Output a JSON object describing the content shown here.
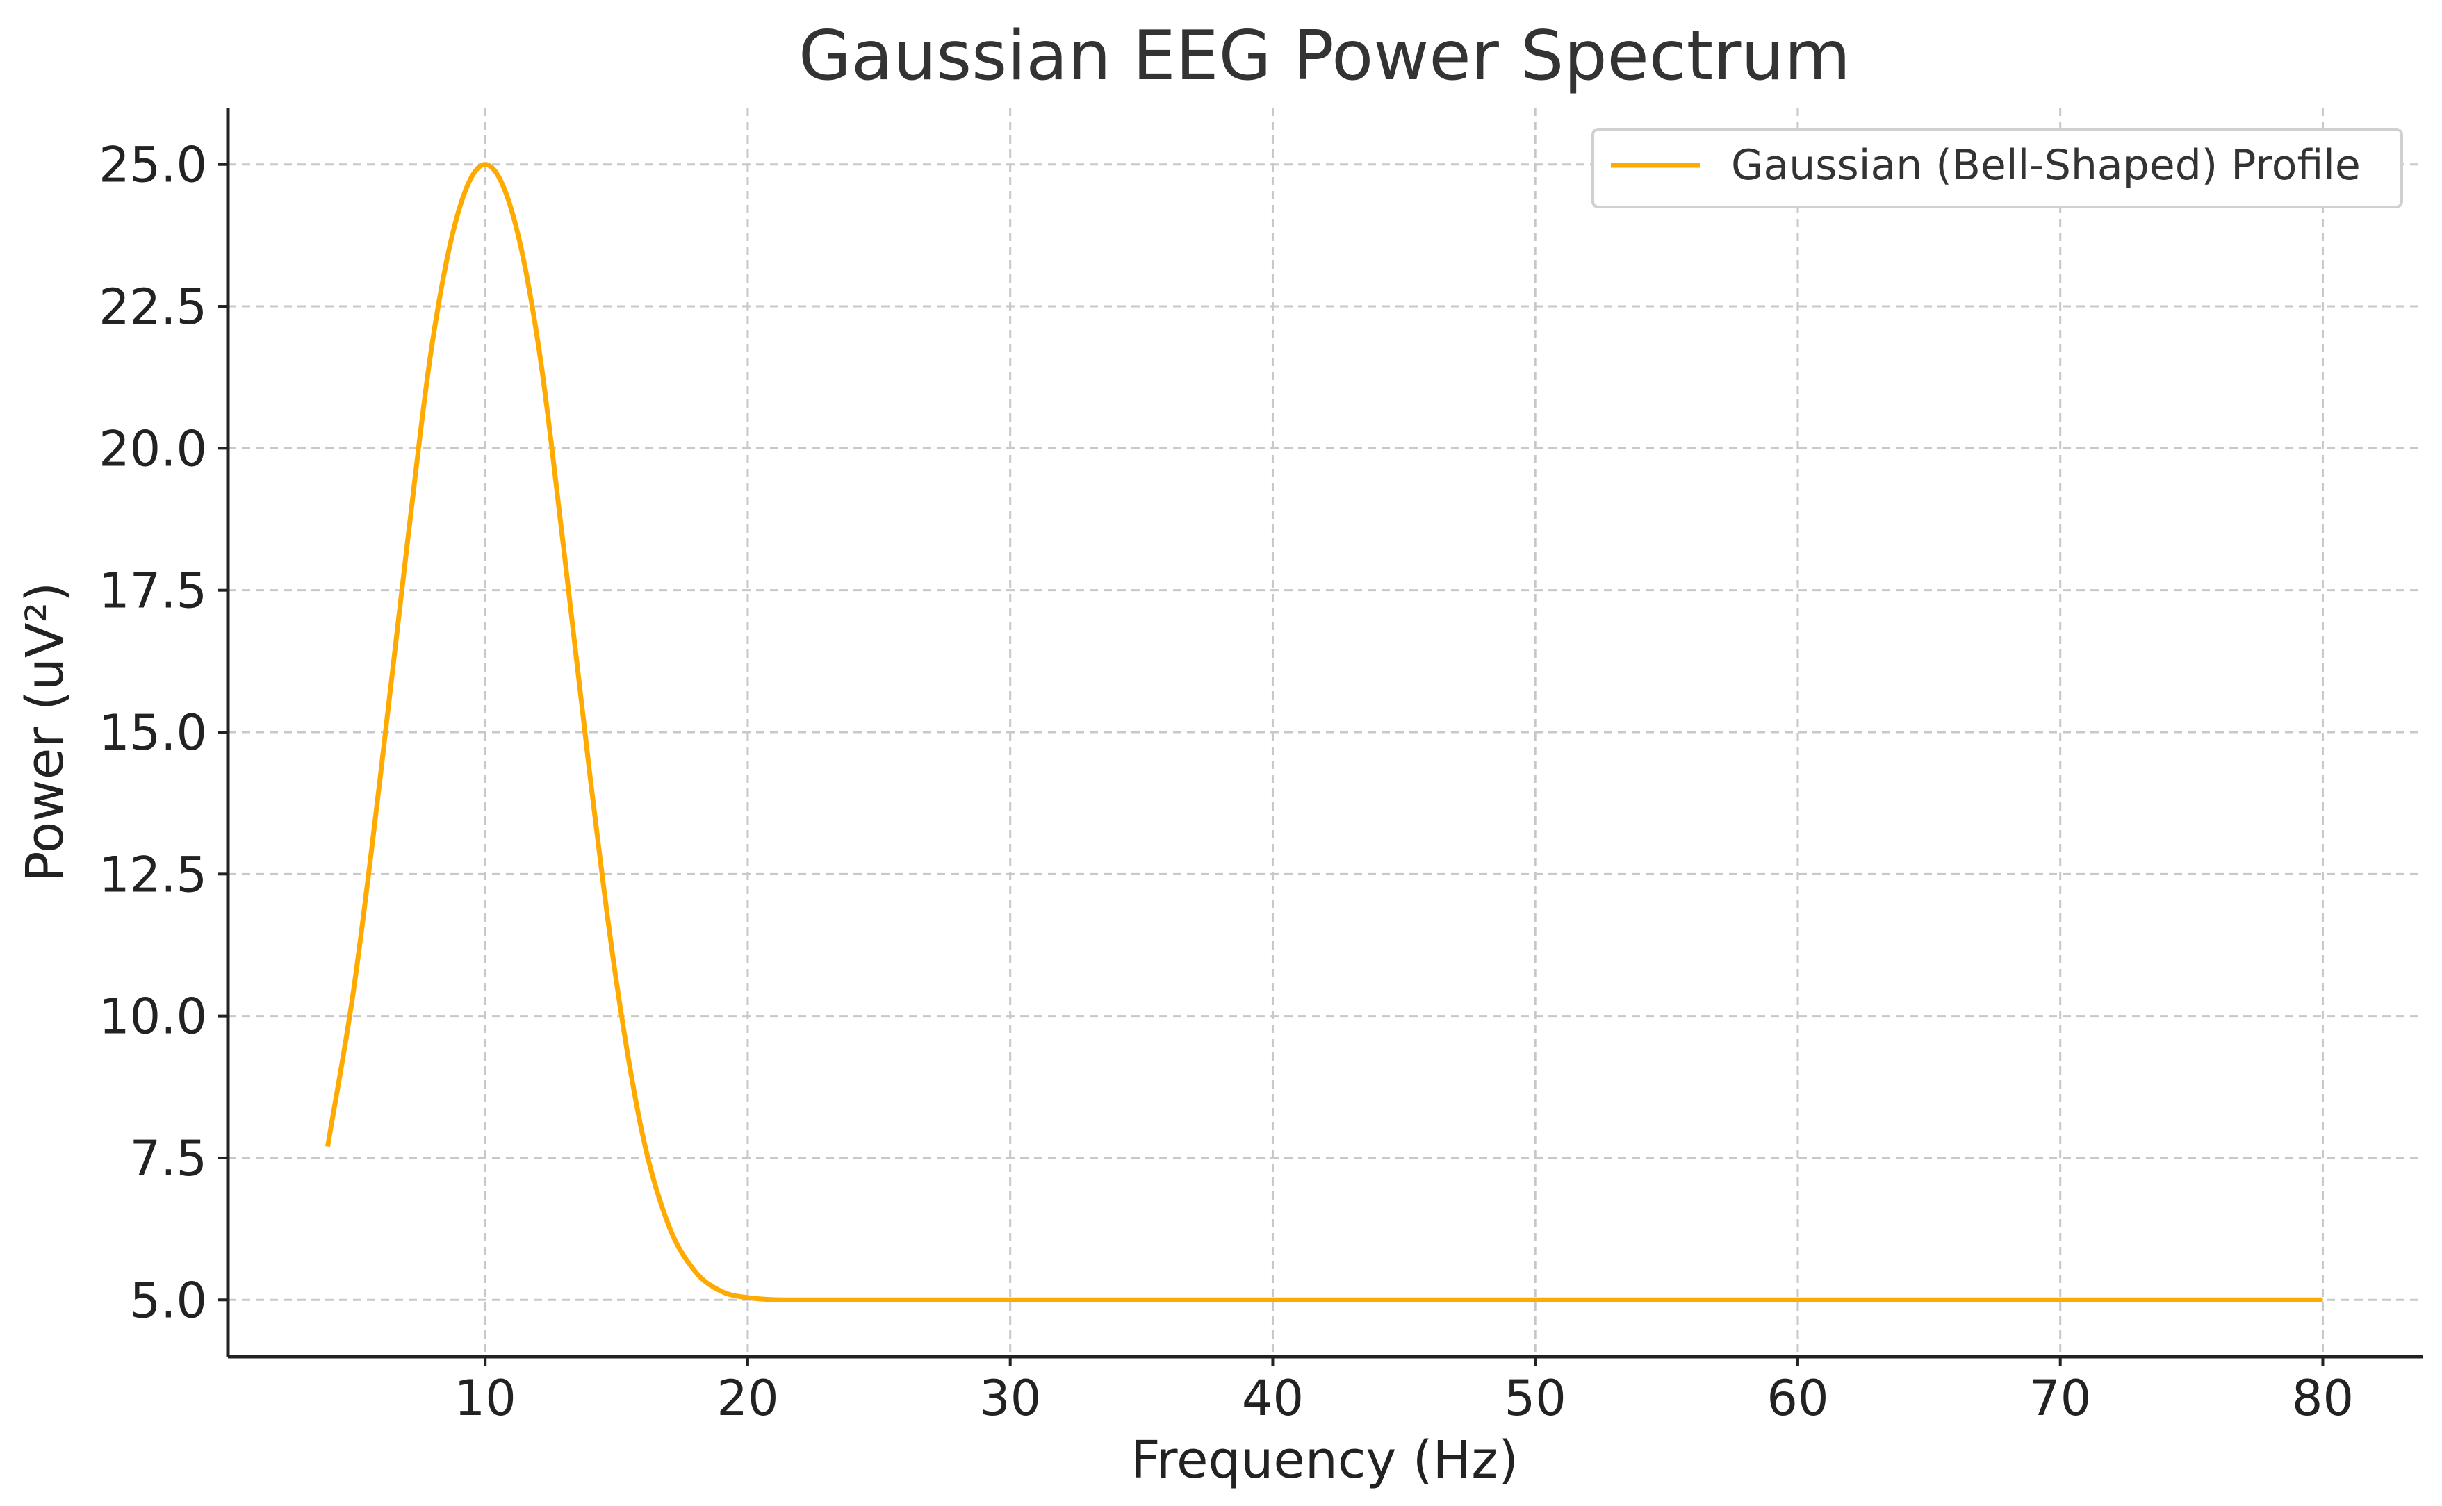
{
  "chart_data": {
    "type": "line",
    "title": "Gaussian EEG Power Spectrum",
    "xlabel": "Frequency (Hz)",
    "ylabel": "Power (uV²)",
    "xlim": [
      0.2,
      83.8
    ],
    "ylim": [
      4.0,
      26.0
    ],
    "x_ticks": [
      10,
      20,
      30,
      40,
      50,
      60,
      70,
      80
    ],
    "x_tick_labels": [
      "10",
      "20",
      "30",
      "40",
      "50",
      "60",
      "70",
      "80"
    ],
    "y_ticks": [
      5.0,
      7.5,
      10.0,
      12.5,
      15.0,
      17.5,
      20.0,
      22.5,
      25.0
    ],
    "y_tick_labels": [
      "5.0",
      "7.5",
      "10.0",
      "12.5",
      "15.0",
      "17.5",
      "20.0",
      "22.5",
      "25.0"
    ],
    "grid": true,
    "legend_position": "top-right",
    "series": [
      {
        "name": "Gaussian (Bell-Shaped) Profile",
        "color": "#FFAA00",
        "x": [
          4,
          5,
          6,
          7,
          8,
          9,
          10,
          11,
          12,
          13,
          14,
          15,
          16,
          17,
          18,
          19,
          20,
          22,
          25,
          30,
          40,
          50,
          60,
          70,
          80
        ],
        "y": [
          7.7,
          10.5,
          14.2,
          18.2,
          21.9,
          24.2,
          25.0,
          24.2,
          21.9,
          18.2,
          14.2,
          10.6,
          7.9,
          6.3,
          5.5,
          5.15,
          5.04,
          5.0,
          5.0,
          5.0,
          5.0,
          5.0,
          5.0,
          5.0,
          5.0
        ]
      }
    ]
  }
}
